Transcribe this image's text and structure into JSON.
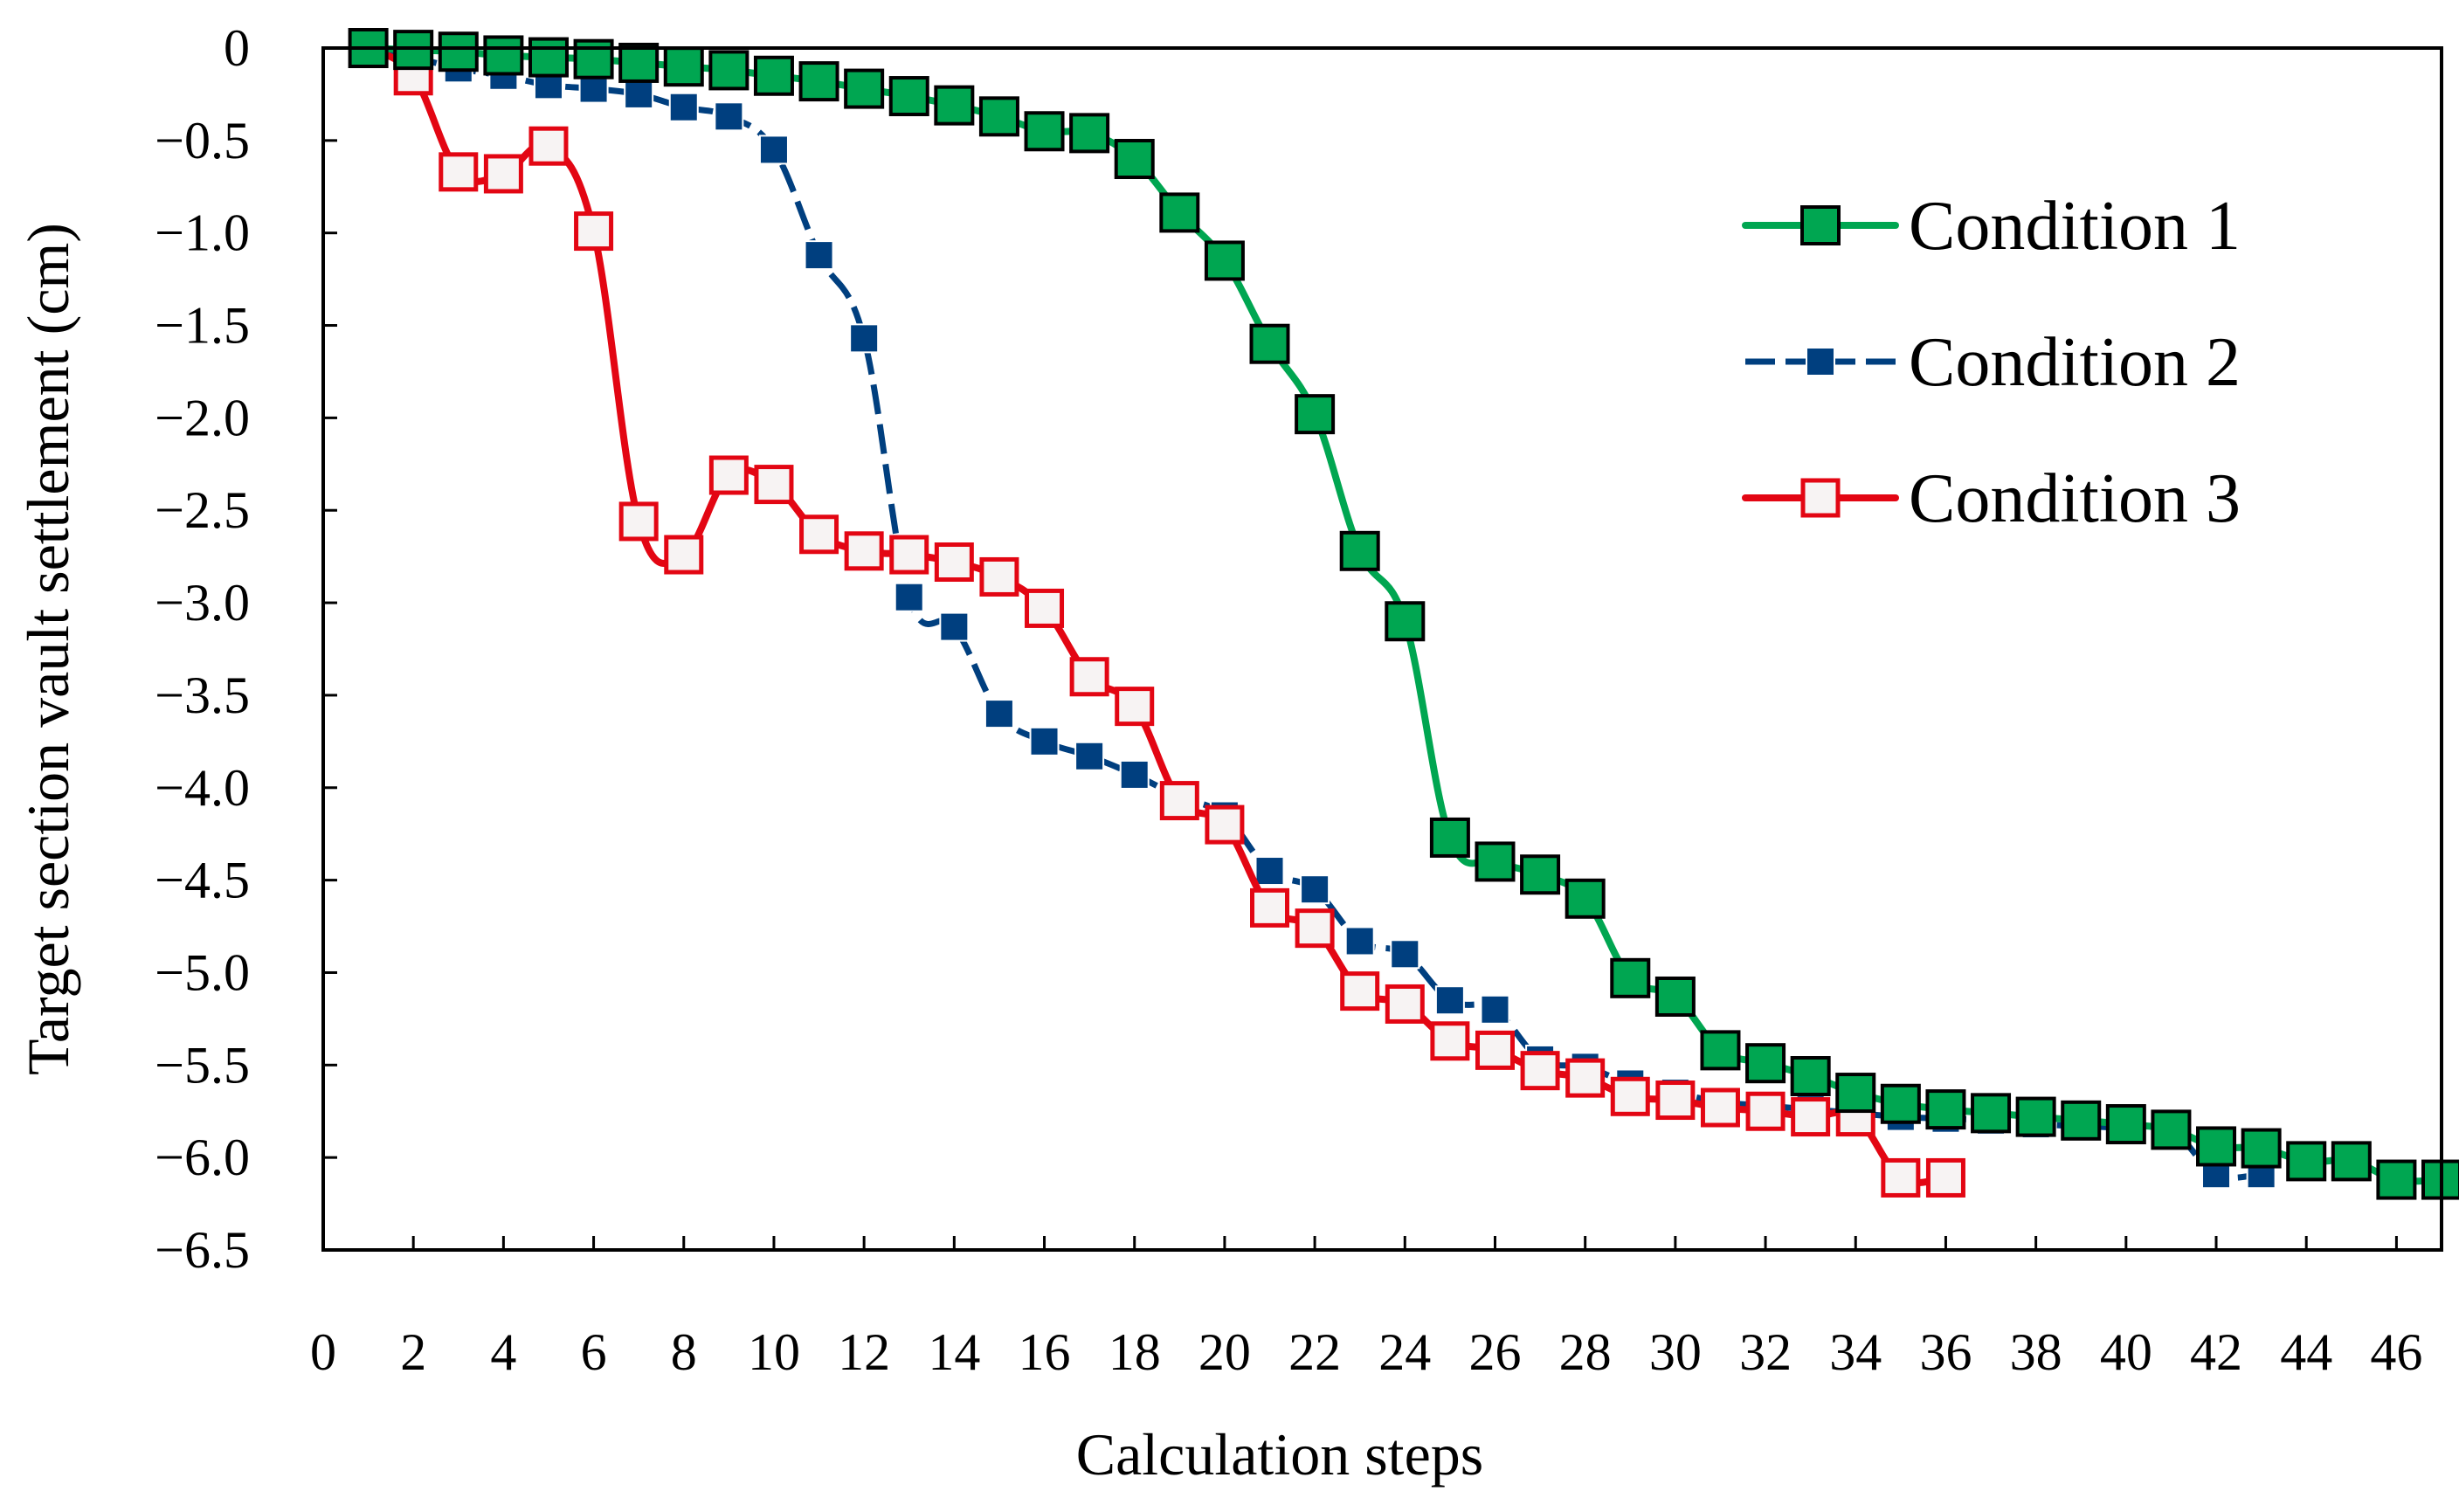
{
  "chart_data": {
    "type": "line",
    "title": "",
    "xlabel": "Calculation steps",
    "ylabel": "Target section vault settlement (cm)",
    "xlim": [
      0,
      47
    ],
    "ylim": [
      -6.5,
      0
    ],
    "xticks": [
      0,
      2,
      4,
      6,
      8,
      10,
      12,
      14,
      16,
      18,
      20,
      22,
      24,
      26,
      28,
      30,
      32,
      34,
      36,
      38,
      40,
      42,
      44,
      46
    ],
    "xtick_labels": [
      "0",
      "2",
      "4",
      "6",
      "8",
      "10",
      "12",
      "14",
      "16",
      "18",
      "20",
      "22",
      "24",
      "26",
      "28",
      "30",
      "32",
      "34",
      "36",
      "38",
      "40",
      "42",
      "44",
      "46"
    ],
    "yticks": [
      0,
      -0.5,
      -1.0,
      -1.5,
      -2.0,
      -2.5,
      -3.0,
      -3.5,
      -4.0,
      -4.5,
      -5.0,
      -5.5,
      -6.0,
      -6.5
    ],
    "ytick_labels": [
      "0",
      "−0.5",
      "−1.0",
      "−1.5",
      "−2.0",
      "−2.5",
      "−3.0",
      "−3.5",
      "−4.0",
      "−4.5",
      "−5.0",
      "−5.5",
      "−6.0",
      "−6.5"
    ],
    "grid": false,
    "legend_position": "top-right",
    "series": [
      {
        "name": "Condition 1",
        "color": "#00a651",
        "marker": "square-filled",
        "x": [
          1,
          2,
          3,
          4,
          5,
          6,
          7,
          8,
          9,
          10,
          11,
          12,
          13,
          14,
          15,
          16,
          17,
          18,
          19,
          20,
          21,
          22,
          23,
          24,
          25,
          26,
          27,
          28,
          29,
          30,
          31,
          32,
          33,
          34,
          35,
          36,
          37,
          38,
          39,
          40,
          41,
          42,
          43,
          44,
          45,
          46,
          47
        ],
        "values": [
          0,
          -0.01,
          -0.02,
          -0.04,
          -0.05,
          -0.06,
          -0.08,
          -0.1,
          -0.12,
          -0.15,
          -0.18,
          -0.22,
          -0.26,
          -0.31,
          -0.37,
          -0.45,
          -0.46,
          -0.6,
          -0.89,
          -1.15,
          -1.6,
          -1.98,
          -2.72,
          -3.1,
          -4.27,
          -4.4,
          -4.47,
          -4.6,
          -5.03,
          -5.13,
          -5.42,
          -5.49,
          -5.56,
          -5.65,
          -5.71,
          -5.74,
          -5.76,
          -5.78,
          -5.8,
          -5.82,
          -5.85,
          -5.94,
          -5.95,
          -6.02,
          -6.02,
          -6.12,
          -6.12
        ]
      },
      {
        "name": "Condition 2",
        "color": "#003f7f",
        "marker": "square-small",
        "x": [
          1,
          2,
          3,
          4,
          5,
          6,
          7,
          8,
          9,
          10,
          11,
          12,
          13,
          14,
          15,
          16,
          17,
          18,
          19,
          20,
          21,
          22,
          23,
          24,
          25,
          26,
          27,
          28,
          29,
          30,
          31,
          32,
          33,
          34,
          35,
          36,
          37,
          38,
          39,
          40,
          41,
          42,
          43
        ],
        "values": [
          0,
          -0.05,
          -0.11,
          -0.15,
          -0.2,
          -0.22,
          -0.25,
          -0.32,
          -0.37,
          -0.55,
          -1.12,
          -1.57,
          -2.97,
          -3.13,
          -3.6,
          -3.75,
          -3.83,
          -3.93,
          -4.05,
          -4.15,
          -4.45,
          -4.55,
          -4.83,
          -4.9,
          -5.15,
          -5.2,
          -5.47,
          -5.51,
          -5.6,
          -5.65,
          -5.7,
          -5.72,
          -5.74,
          -5.76,
          -5.78,
          -5.79,
          -5.8,
          -5.82,
          -5.83,
          -5.84,
          -5.85,
          -6.09,
          -6.09
        ]
      },
      {
        "name": "Condition 3",
        "color": "#e30613",
        "marker": "square-open",
        "x": [
          1,
          2,
          3,
          4,
          5,
          6,
          7,
          8,
          9,
          10,
          11,
          12,
          13,
          14,
          15,
          16,
          17,
          18,
          19,
          20,
          21,
          22,
          23,
          24,
          25,
          26,
          27,
          28,
          29,
          30,
          31,
          32,
          33,
          34,
          35,
          36
        ],
        "values": [
          0,
          -0.15,
          -0.67,
          -0.68,
          -0.53,
          -0.99,
          -2.56,
          -2.74,
          -2.31,
          -2.36,
          -2.63,
          -2.72,
          -2.74,
          -2.78,
          -2.86,
          -3.03,
          -3.4,
          -3.56,
          -4.07,
          -4.2,
          -4.65,
          -4.76,
          -5.1,
          -5.17,
          -5.37,
          -5.42,
          -5.53,
          -5.57,
          -5.67,
          -5.69,
          -5.73,
          -5.75,
          -5.78,
          -5.78,
          -6.11,
          -6.11
        ]
      }
    ]
  }
}
